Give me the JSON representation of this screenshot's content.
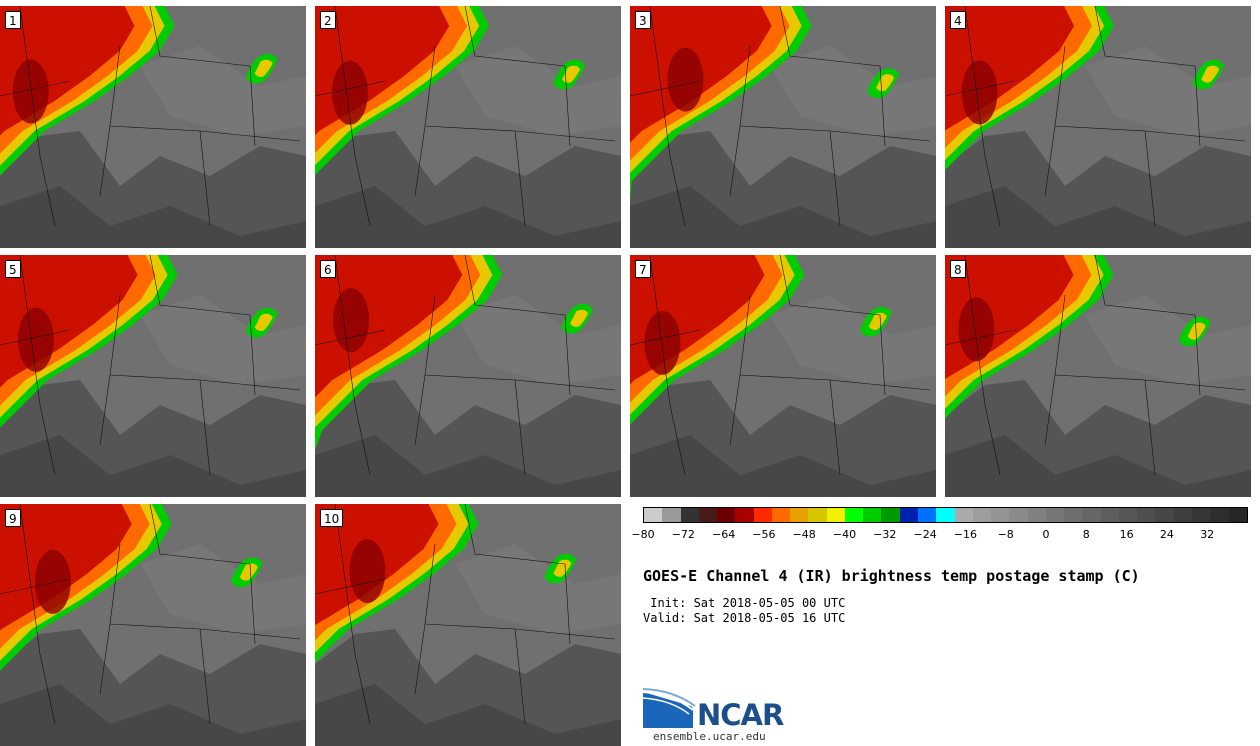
{
  "panels": [
    {
      "label": "1"
    },
    {
      "label": "2"
    },
    {
      "label": "3"
    },
    {
      "label": "4"
    },
    {
      "label": "5"
    },
    {
      "label": "6"
    },
    {
      "label": "7"
    },
    {
      "label": "8"
    },
    {
      "label": "9"
    },
    {
      "label": "10"
    }
  ],
  "colorbar": {
    "colors": [
      "#cccccc",
      "#999999",
      "#333333",
      "#4a1a1a",
      "#6b0000",
      "#a80000",
      "#ff2a00",
      "#ff6a00",
      "#e8a000",
      "#d6c600",
      "#f0f000",
      "#00ff00",
      "#00cc00",
      "#009900",
      "#0020b0",
      "#0070ff",
      "#00ffff",
      "#aaaaaa",
      "#9e9e9e",
      "#949494",
      "#8a8a8a",
      "#808080",
      "#777777",
      "#6e6e6e",
      "#666666",
      "#5e5e5e",
      "#565656",
      "#4e4e4e",
      "#464646",
      "#3e3e3e",
      "#363636",
      "#2e2e2e",
      "#262626"
    ],
    "ticks": [
      "−80",
      "−72",
      "−64",
      "−56",
      "−48",
      "−40",
      "−32",
      "−24",
      "−16",
      "−8",
      "0",
      "8",
      "16",
      "24",
      "32"
    ]
  },
  "title": "GOES-E Channel 4 (IR) brightness temp postage stamp (C)",
  "init_line": " Init: Sat 2018-05-05 00 UTC",
  "valid_line": "Valid: Sat 2018-05-05 16 UTC",
  "logo_text": "NCAR",
  "url": "ensemble.ucar.edu"
}
